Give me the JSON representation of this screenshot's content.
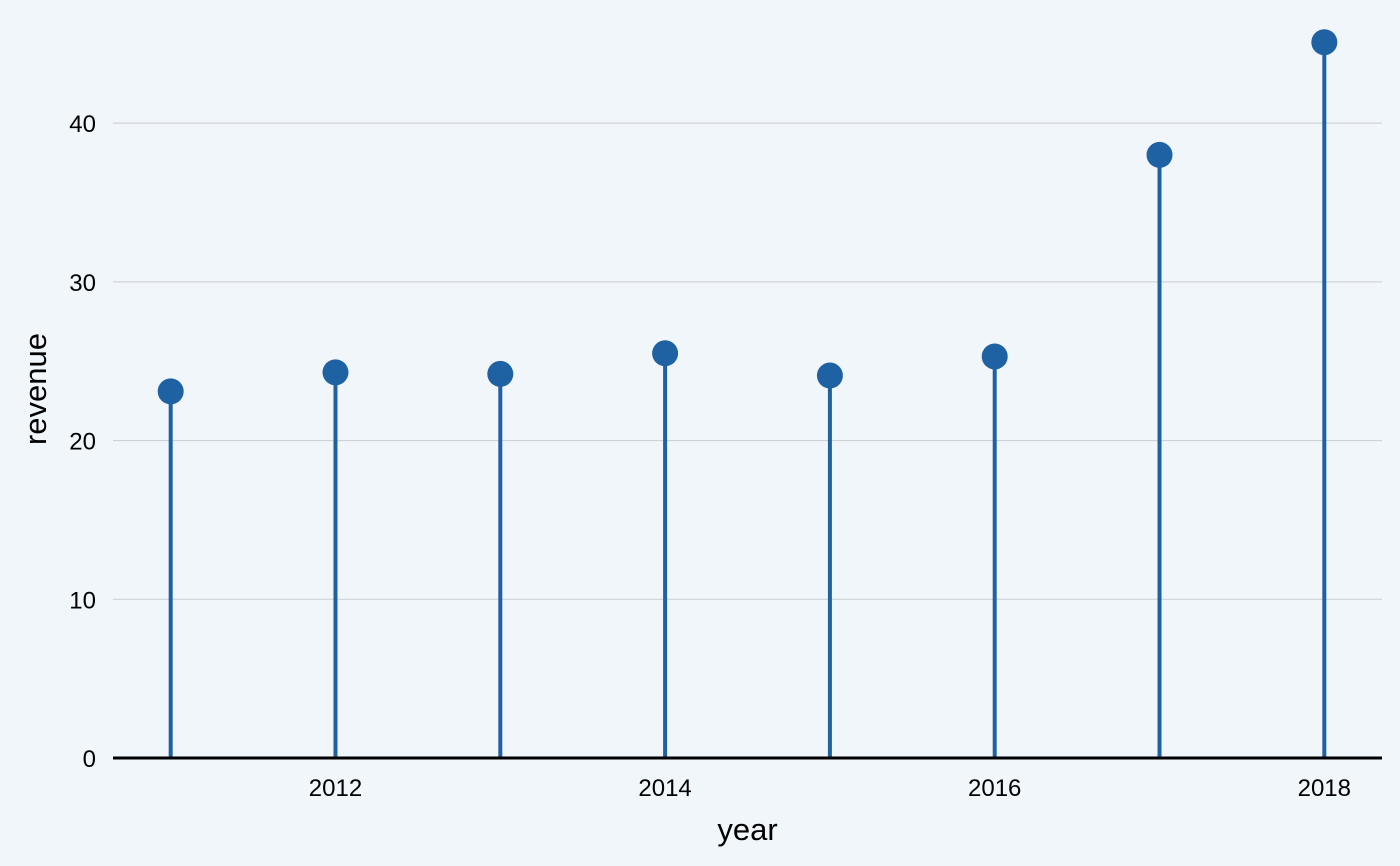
{
  "chart_data": {
    "type": "lollipop",
    "xlabel": "year",
    "ylabel": "revenue",
    "x": [
      2011,
      2012,
      2013,
      2014,
      2015,
      2016,
      2017,
      2018
    ],
    "values": [
      23.1,
      24.3,
      24.2,
      25.5,
      24.1,
      25.3,
      38.0,
      45.1
    ],
    "x_ticks": [
      2012,
      2014,
      2016,
      2018
    ],
    "y_ticks": [
      0,
      10,
      20,
      30,
      40
    ],
    "xlim": [
      2010.65,
      2018.35
    ],
    "ylim": [
      0,
      46.5
    ],
    "grid": "horizontal",
    "color": "#1f62a3",
    "background": "#f1f6fa"
  }
}
